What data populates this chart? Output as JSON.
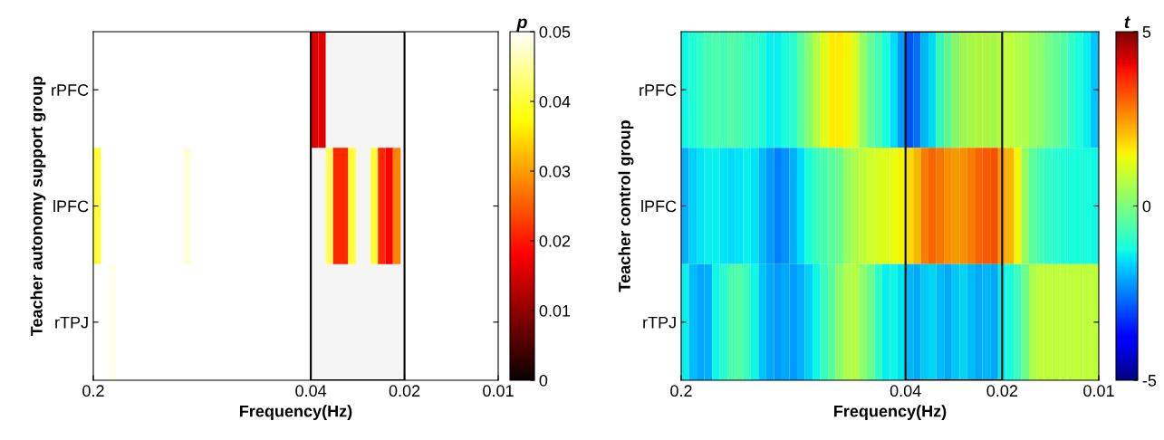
{
  "chart_data": [
    {
      "type": "heatmap",
      "ylabel": "Teacher autonomy support group",
      "xlabel": "Frequency(Hz)",
      "clabel": "p",
      "x": [
        0.1945,
        0.184,
        0.1741,
        0.1647,
        0.1558,
        0.1474,
        0.1395,
        0.1319,
        0.1248,
        0.1181,
        0.1117,
        0.1057,
        0.1,
        0.0946,
        0.0895,
        0.0847,
        0.0801,
        0.0758,
        0.0717,
        0.0678,
        0.0642,
        0.0607,
        0.0574,
        0.0543,
        0.0514,
        0.0486,
        0.046,
        0.0435,
        0.0412,
        0.0389,
        0.0368,
        0.0349,
        0.033,
        0.0312,
        0.0295,
        0.0279,
        0.0264,
        0.025,
        0.0237,
        0.0224,
        0.0212,
        0.02,
        0.0189,
        0.0179,
        0.017,
        0.016,
        0.0152,
        0.0144,
        0.0136,
        0.0128,
        0.0122,
        0.0115,
        0.0109,
        0.0103
      ],
      "y_categories": [
        "rPFC",
        "lPFC",
        "rTPJ"
      ],
      "cells": [
        [
          null,
          null,
          null,
          null,
          null,
          null,
          null,
          null,
          null,
          null,
          null,
          null,
          null,
          null,
          null,
          null,
          null,
          null,
          null,
          null,
          null,
          null,
          null,
          null,
          null,
          null,
          null,
          null,
          null,
          0.016,
          0.016,
          null,
          null,
          null,
          null,
          null,
          null,
          null,
          null,
          null,
          null,
          null,
          null,
          null,
          null,
          null,
          null,
          null,
          null,
          null,
          null,
          null,
          null,
          null
        ],
        [
          0.04,
          null,
          null,
          null,
          null,
          null,
          null,
          null,
          null,
          null,
          null,
          null,
          0.048,
          null,
          null,
          null,
          null,
          null,
          null,
          null,
          null,
          null,
          null,
          null,
          null,
          null,
          null,
          null,
          null,
          null,
          null,
          0.042,
          0.021,
          0.021,
          0.04,
          null,
          null,
          0.04,
          0.021,
          0.018,
          0.028,
          null,
          null,
          null,
          null,
          null,
          null,
          null,
          null,
          null,
          null,
          null,
          null,
          null
        ],
        [
          null,
          null,
          0.049,
          null,
          null,
          null,
          null,
          null,
          null,
          null,
          null,
          null,
          null,
          null,
          null,
          null,
          null,
          null,
          null,
          null,
          null,
          null,
          null,
          null,
          null,
          null,
          null,
          null,
          null,
          null,
          null,
          null,
          null,
          null,
          null,
          null,
          null,
          null,
          null,
          null,
          null,
          null,
          null,
          null,
          null,
          null,
          null,
          null,
          null,
          null,
          null,
          null,
          null,
          null
        ]
      ],
      "xlim": [
        0.2,
        0.01
      ],
      "xticks": [
        0.2,
        0.04,
        0.02,
        0.01
      ],
      "log": "x",
      "clim": [
        0,
        0.05
      ],
      "cticks": [
        0,
        0.01,
        0.02,
        0.03,
        0.04,
        0.05
      ],
      "bands": [
        {
          "axis": "x",
          "from": 0.04,
          "to": 0.02,
          "color": "#000000"
        }
      ]
    },
    {
      "type": "heatmap",
      "ylabel": "Teacher control group",
      "xlabel": "Frequency(Hz)",
      "clabel": "t",
      "x": [
        0.1945,
        0.184,
        0.1741,
        0.1647,
        0.1558,
        0.1474,
        0.1395,
        0.1319,
        0.1248,
        0.1181,
        0.1117,
        0.1057,
        0.1,
        0.0946,
        0.0895,
        0.0847,
        0.0801,
        0.0758,
        0.0717,
        0.0678,
        0.0642,
        0.0607,
        0.0574,
        0.0543,
        0.0514,
        0.0486,
        0.046,
        0.0435,
        0.0412,
        0.0389,
        0.0368,
        0.0349,
        0.033,
        0.0312,
        0.0295,
        0.0279,
        0.0264,
        0.025,
        0.0237,
        0.0224,
        0.0212,
        0.02,
        0.0189,
        0.0179,
        0.017,
        0.016,
        0.0152,
        0.0144,
        0.0136,
        0.0128,
        0.0122,
        0.0115,
        0.0109,
        0.0103
      ],
      "y_categories": [
        "rPFC",
        "lPFC",
        "rTPJ"
      ],
      "cells": [
        [
          -1.3,
          -1.1,
          -0.9,
          -0.7,
          -0.6,
          -0.7,
          -0.5,
          -0.6,
          -0.8,
          -0.9,
          -1.1,
          -1.4,
          -1.4,
          -1.2,
          -1.0,
          -0.4,
          0.1,
          0.7,
          1.2,
          1.6,
          1.6,
          1.5,
          1.1,
          0.3,
          -0.3,
          -0.7,
          -1.2,
          -1.6,
          -2.2,
          -2.9,
          -2.6,
          -1.9,
          -1.5,
          -0.8,
          -0.3,
          0.2,
          0.5,
          0.6,
          0.7,
          0.7,
          0.6,
          0.8,
          0.8,
          0.7,
          0.6,
          0.3,
          0.2,
          -0.1,
          -0.3,
          -0.5,
          -0.9,
          -1.2,
          -1.4,
          -1.8
        ],
        [
          -2.0,
          -1.7,
          -1.5,
          -1.4,
          -1.4,
          -1.5,
          -1.6,
          -1.5,
          -1.4,
          -1.5,
          -1.9,
          -2.2,
          -2.5,
          -2.3,
          -2.0,
          -1.6,
          -1.2,
          -0.8,
          -0.6,
          -0.4,
          -0.2,
          0.3,
          0.6,
          0.8,
          1.0,
          1.1,
          1.2,
          1.3,
          1.5,
          1.7,
          2.1,
          2.7,
          3.0,
          2.8,
          2.5,
          2.4,
          2.5,
          2.7,
          3.0,
          3.1,
          3.2,
          2.4,
          2.2,
          1.5,
          0.3,
          -0.4,
          -0.7,
          -0.9,
          -1.0,
          -1.1,
          -1.2,
          -1.2,
          -1.2,
          -1.3
        ],
        [
          -1.4,
          -1.9,
          -2.1,
          -2.0,
          -1.3,
          -1.0,
          -0.6,
          -0.5,
          -0.8,
          -1.3,
          -1.8,
          -2.1,
          -2.2,
          -2.1,
          -2.2,
          -2.0,
          -1.7,
          -1.3,
          -0.8,
          -0.4,
          0.2,
          0.6,
          0.7,
          0.2,
          -0.2,
          -0.9,
          -1.4,
          -1.3,
          -1.5,
          -1.9,
          -2.0,
          -1.7,
          -1.6,
          -1.8,
          -2.0,
          -1.7,
          -1.6,
          -1.8,
          -2.0,
          -1.9,
          -2.0,
          -1.4,
          -1.2,
          -0.8,
          -0.2,
          0.6,
          0.8,
          0.8,
          0.8,
          0.8,
          0.8,
          0.8,
          0.8,
          0.8
        ]
      ],
      "xlim": [
        0.2,
        0.01
      ],
      "xticks": [
        0.2,
        0.04,
        0.02,
        0.01
      ],
      "log": "x",
      "clim": [
        -5,
        5
      ],
      "cticks": [
        -5,
        0,
        5
      ],
      "bands": [
        {
          "axis": "x",
          "from": 0.04,
          "to": 0.02,
          "color": "#000000"
        }
      ]
    }
  ]
}
